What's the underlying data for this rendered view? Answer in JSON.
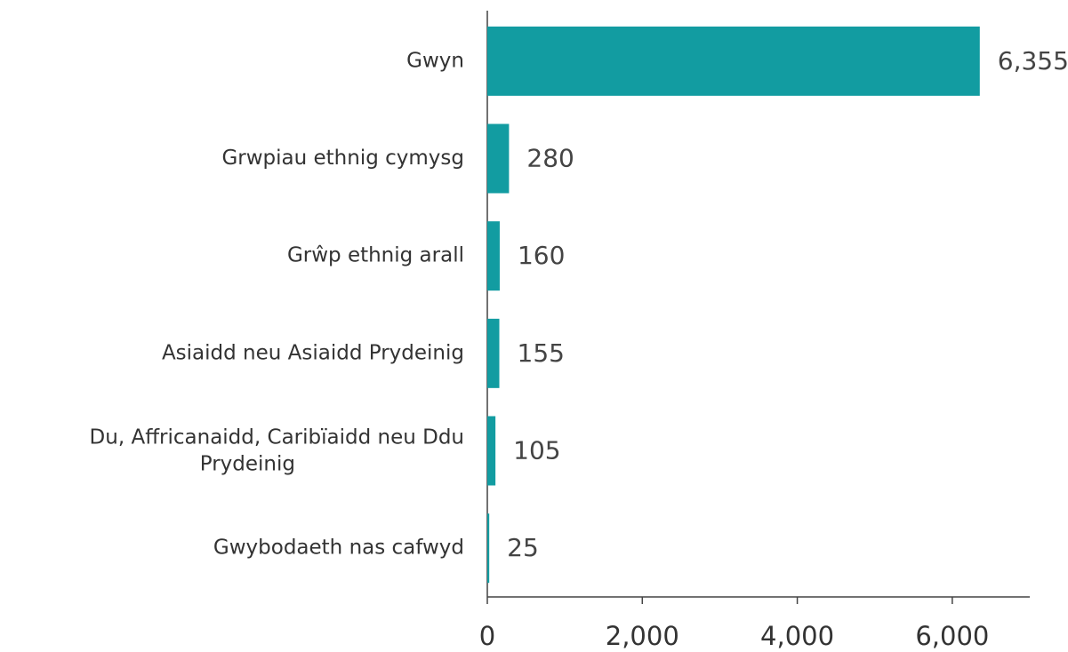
{
  "chart_data": {
    "type": "bar",
    "orientation": "horizontal",
    "categories": [
      "Gwyn",
      "Grwpiau ethnig cymysg",
      "Grŵp ethnig arall",
      "Asiaidd neu Asiaidd Prydeinig",
      "Du, Affricanaidd, Caribïaidd neu Ddu Prydeinig",
      "Gwybodaeth nas cafwyd"
    ],
    "values": [
      6355,
      280,
      160,
      155,
      105,
      25
    ],
    "value_labels": [
      "6,355",
      "280",
      "160",
      "155",
      "105",
      "25"
    ],
    "color": "#129ca1",
    "xlim": [
      0,
      7000
    ],
    "xticks": [
      0,
      {
        "value": 2000,
        "label": "2,000"
      },
      {
        "value": 4000,
        "label": "4,000"
      },
      {
        "value": 6000,
        "label": "6,000"
      }
    ],
    "grid": false
  }
}
